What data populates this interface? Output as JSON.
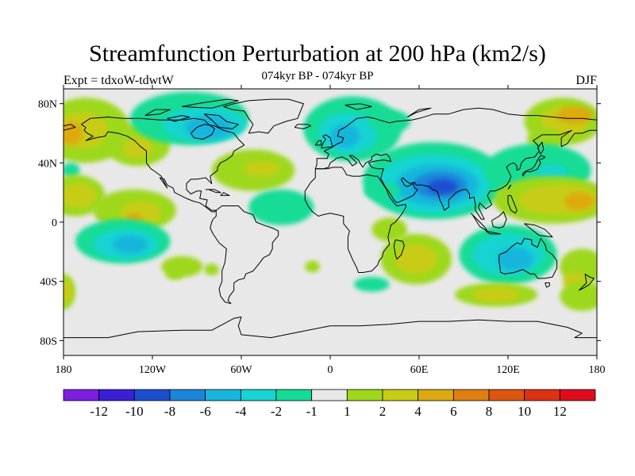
{
  "header": {
    "title": "Streamfunction Perturbation at 200 hPa (km2/s)",
    "subtitle": "074kyr BP - 074kyr BP",
    "left": "Expt = tdxoW-tdwtW",
    "right": "DJF"
  },
  "map": {
    "projection": "equirectangular",
    "lon_range": [
      -180,
      180
    ],
    "lat_range": [
      -90,
      90
    ],
    "background_color": "#e8e8e8",
    "lat_ticks": [
      {
        "value": 80,
        "label": "80N"
      },
      {
        "value": 40,
        "label": "40N"
      },
      {
        "value": 0,
        "label": "0"
      },
      {
        "value": -40,
        "label": "40S"
      },
      {
        "value": -80,
        "label": "80S"
      }
    ],
    "lon_ticks": [
      {
        "value": -180,
        "label": "180"
      },
      {
        "value": -120,
        "label": "120W"
      },
      {
        "value": -60,
        "label": "60W"
      },
      {
        "value": 0,
        "label": "0"
      },
      {
        "value": 60,
        "label": "60E"
      },
      {
        "value": 120,
        "label": "120E"
      },
      {
        "value": 180,
        "label": "180"
      }
    ]
  },
  "colorbar": {
    "colors": [
      "#7b1fe0",
      "#3a1fd6",
      "#1c4fd0",
      "#1a86da",
      "#18b6dc",
      "#16d4d2",
      "#12dc96",
      "#e8e8e8",
      "#9ed81a",
      "#c8cc12",
      "#dcaa10",
      "#df7f10",
      "#de5510",
      "#dc3212",
      "#df0c1b"
    ],
    "labels": [
      "-12",
      "-10",
      "-8",
      "-6",
      "-4",
      "-2",
      "-1",
      "1",
      "2",
      "4",
      "6",
      "8",
      "10",
      "12"
    ]
  }
}
